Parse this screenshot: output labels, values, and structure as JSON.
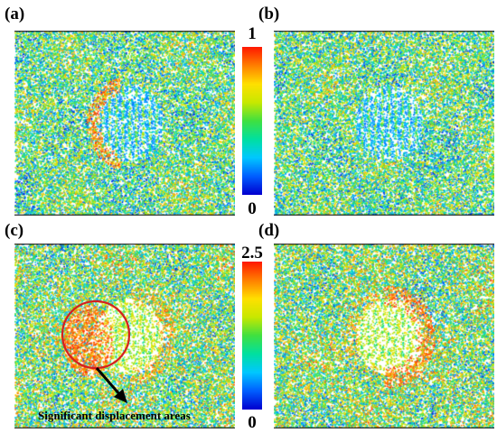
{
  "panels": [
    {
      "label": "(a)"
    },
    {
      "label": "(b)"
    },
    {
      "label": "(c)"
    },
    {
      "label": "(d)"
    }
  ],
  "colorbars": [
    {
      "max_label": "1",
      "min_label": "0"
    },
    {
      "max_label": "2.5",
      "min_label": "0"
    }
  ],
  "annotation": {
    "text": "Significant displacement areas"
  },
  "colors": {
    "colormap": [
      "#0000d0",
      "#0060ff",
      "#00c8ff",
      "#00e0a0",
      "#40e040",
      "#c8e800",
      "#ffe000",
      "#ff8000",
      "#ff1a00"
    ],
    "circle": "#d42020"
  }
}
